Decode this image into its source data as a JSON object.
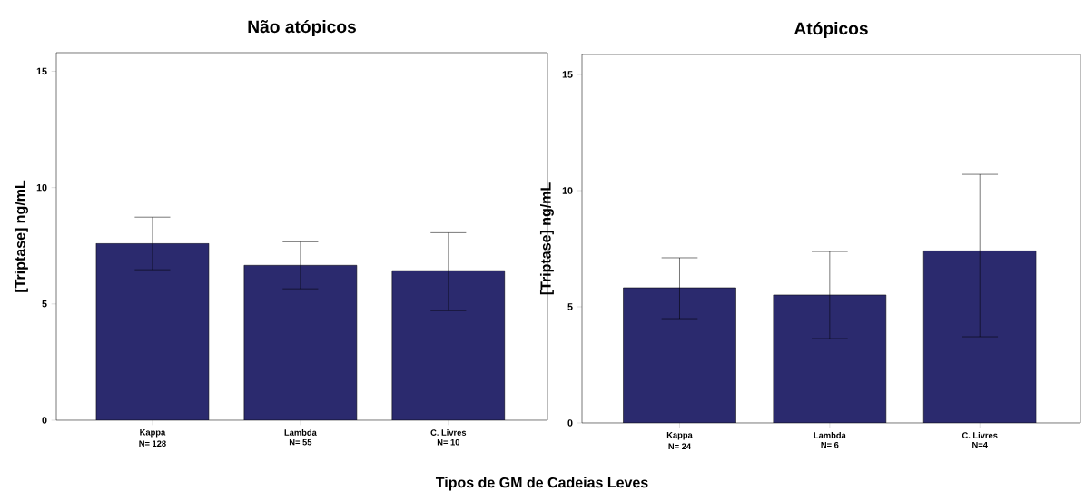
{
  "chart_data": [
    {
      "type": "bar",
      "title": "Não atópicos",
      "xlabel": "Tipos de GM de Cadeias Leves",
      "ylabel": "[Triptase] ng/mL",
      "categories": [
        "Kappa",
        "Lambda",
        "C. Livres"
      ],
      "values": [
        7.6,
        6.66,
        6.43
      ],
      "errors": [
        [
          6.47,
          8.73
        ],
        [
          5.65,
          7.67
        ],
        [
          4.71,
          8.06
        ]
      ],
      "color": "#2b2a6e",
      "ylim": [
        0,
        15.8
      ],
      "yticks": [
        0,
        5,
        10,
        15
      ],
      "grid": false,
      "annotations": [
        "N= 128",
        "N= 55",
        "N= 10"
      ]
    },
    {
      "type": "bar",
      "title": "Atópicos",
      "ylabel": "[Triptase] ng/mL",
      "categories": [
        "Kappa",
        "Lambda",
        "C. Livres"
      ],
      "values": [
        5.82,
        5.51,
        7.42
      ],
      "errors": [
        [
          4.49,
          7.11
        ],
        [
          3.63,
          7.38
        ],
        [
          3.71,
          10.7
        ]
      ],
      "color": "#2b2a6e",
      "ylim": [
        0,
        15.86
      ],
      "yticks": [
        0,
        5,
        10,
        15
      ],
      "grid": false,
      "annotations": [
        "N= 24",
        "N= 6",
        "N=4"
      ]
    }
  ]
}
